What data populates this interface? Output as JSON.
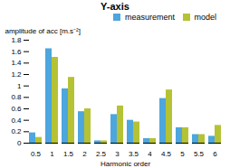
{
  "chart_data": {
    "type": "bar",
    "title": "Y-axis",
    "xlabel": "Harmonic order",
    "ylabel": "amplitude of acc [m.s⁻²]",
    "categories": [
      "0.5",
      "1",
      "1.5",
      "2",
      "2.5",
      "3",
      "3.5",
      "4",
      "4.5",
      "5",
      "5.5",
      "6"
    ],
    "series": [
      {
        "name": "measurement",
        "color": "#4da6dd",
        "values": [
          0.18,
          1.65,
          0.95,
          0.55,
          0.04,
          0.5,
          0.4,
          0.08,
          0.78,
          0.27,
          0.15,
          0.12
        ]
      },
      {
        "name": "model",
        "color": "#b5c234",
        "values": [
          0.1,
          1.5,
          1.15,
          0.6,
          0.04,
          0.65,
          0.37,
          0.08,
          0.93,
          0.27,
          0.15,
          0.31
        ]
      }
    ],
    "ylim": [
      0,
      1.8
    ],
    "yticks": [
      0,
      0.2,
      0.4,
      0.6,
      0.8,
      1,
      1.2,
      1.4,
      1.6,
      1.8
    ],
    "legend": "upper right",
    "grid": false
  }
}
